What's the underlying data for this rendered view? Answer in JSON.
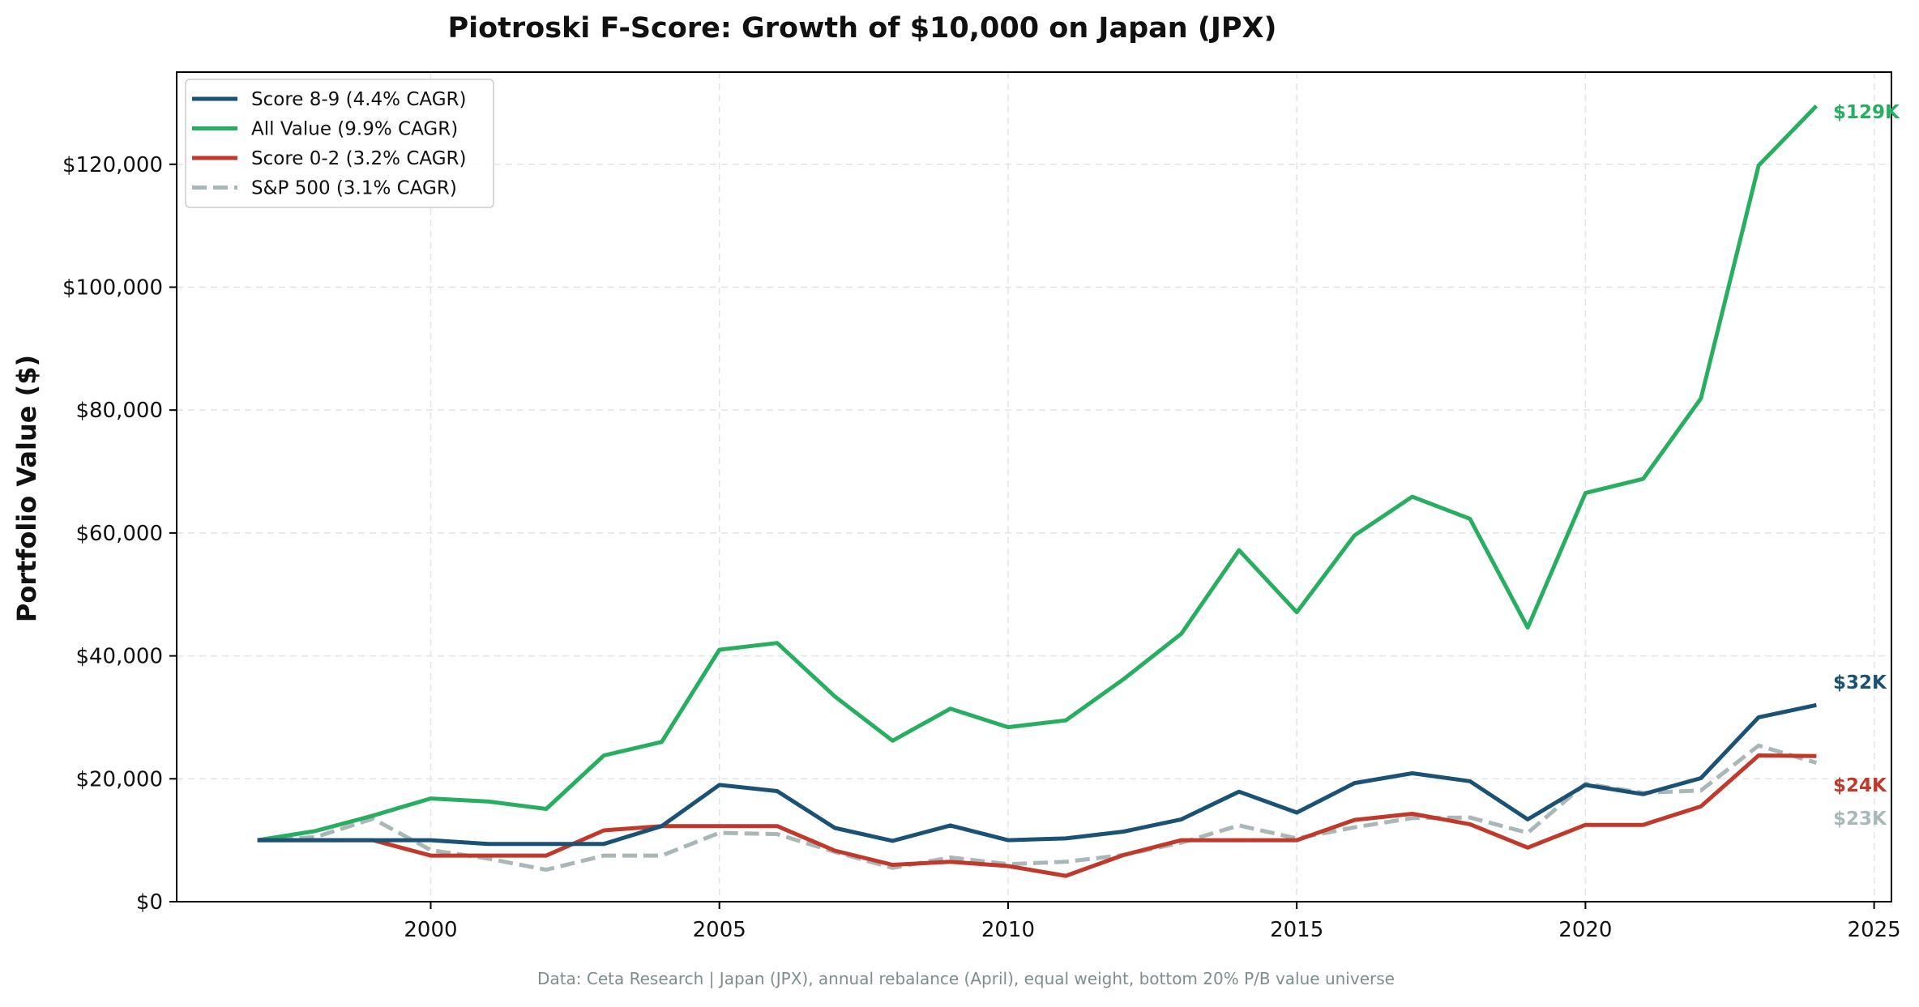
{
  "chart_data": {
    "type": "line",
    "title": "Piotroski F-Score: Growth of $10,000 on Japan (JPX)",
    "xlabel": "",
    "ylabel": "Portfolio Value ($)",
    "footnote": "Data: Ceta Research | Japan (JPX), annual rebalance (April), equal weight, bottom 20% P/B value universe",
    "xlim": [
      1995.6,
      2025.3
    ],
    "ylim": [
      0,
      135000
    ],
    "x_ticks": [
      2000,
      2005,
      2010,
      2015,
      2020,
      2025
    ],
    "x_tick_labels": [
      "2000",
      "2005",
      "2010",
      "2015",
      "2020",
      "2025"
    ],
    "y_ticks": [
      0,
      20000,
      40000,
      60000,
      80000,
      100000,
      120000
    ],
    "y_tick_labels": [
      "$0",
      "$20,000",
      "$40,000",
      "$60,000",
      "$80,000",
      "$100,000",
      "$120,000"
    ],
    "grid": true,
    "legend_position": "top-left",
    "x": [
      1997,
      1998,
      1999,
      2000,
      2001,
      2002,
      2003,
      2004,
      2005,
      2006,
      2007,
      2008,
      2009,
      2010,
      2011,
      2012,
      2013,
      2014,
      2015,
      2016,
      2017,
      2018,
      2019,
      2020,
      2021,
      2022,
      2023,
      2024
    ],
    "series": [
      {
        "name": "Score 8-9 (4.4% CAGR)",
        "color": "#1a5276",
        "dash": "solid",
        "end_label": "$32K",
        "values": [
          10000,
          10000,
          10000,
          10000,
          9400,
          9400,
          9400,
          12300,
          19000,
          18000,
          12000,
          9900,
          12400,
          10000,
          10300,
          11400,
          13400,
          17900,
          14500,
          19300,
          20900,
          19600,
          13400,
          19000,
          17500,
          20100,
          30000,
          32000
        ]
      },
      {
        "name": "All Value (9.9% CAGR)",
        "color": "#27ae60",
        "dash": "solid",
        "end_label": "$129K",
        "values": [
          10000,
          11500,
          14000,
          16800,
          16300,
          15100,
          23800,
          26000,
          41000,
          42100,
          33400,
          26200,
          31400,
          28400,
          29500,
          36200,
          43600,
          57200,
          47100,
          59600,
          65900,
          62300,
          44600,
          66500,
          68800,
          81900,
          119800,
          129500
        ]
      },
      {
        "name": "Score 0-2 (3.2% CAGR)",
        "color": "#c0392b",
        "dash": "solid",
        "end_label": "$24K",
        "values": [
          10000,
          10000,
          10000,
          7500,
          7500,
          7500,
          11600,
          12300,
          12300,
          12300,
          8300,
          6000,
          6500,
          5800,
          4200,
          7600,
          10000,
          10000,
          10000,
          13300,
          14300,
          12600,
          8800,
          12500,
          12500,
          15500,
          23800,
          23700
        ]
      },
      {
        "name": "S&P 500 (3.1% CAGR)",
        "color": "#aab7b8",
        "dash": "dashed",
        "end_label": "$23K",
        "values": [
          10000,
          10500,
          13500,
          8400,
          7000,
          5200,
          7500,
          7500,
          11200,
          11000,
          8100,
          5500,
          7200,
          6100,
          6500,
          7600,
          9600,
          12400,
          10300,
          12100,
          13600,
          13700,
          11200,
          19200,
          17700,
          18100,
          25400,
          22600
        ]
      }
    ]
  }
}
